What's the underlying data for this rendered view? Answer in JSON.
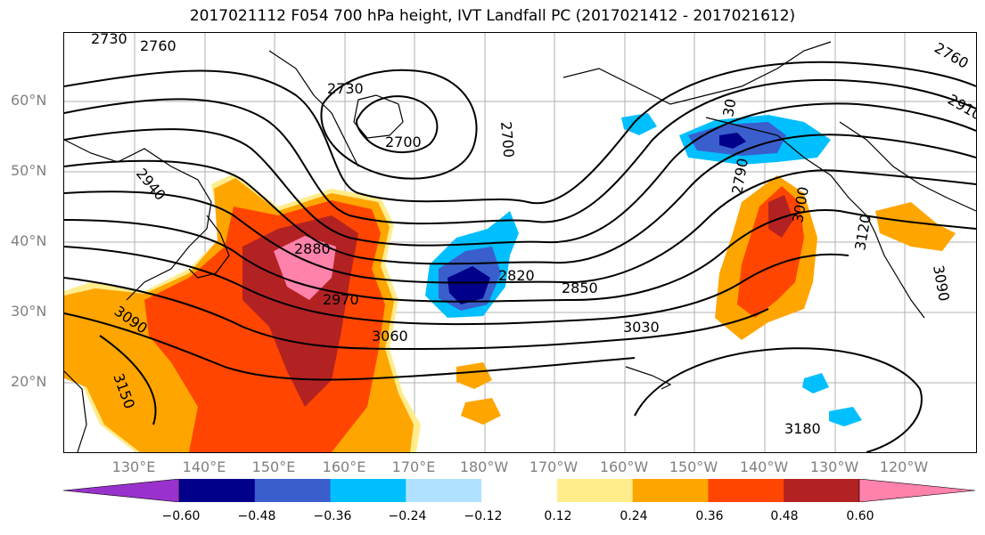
{
  "title": "2017021112 F054 700 hPa height, IVT Landfall PC (2017021412 - 2017021612)",
  "lat_labels": [
    "60°N",
    "50°N",
    "40°N",
    "30°N",
    "20°N"
  ],
  "lon_labels": [
    "130°E",
    "140°E",
    "150°E",
    "160°E",
    "170°E",
    "180°W",
    "170°W",
    "160°W",
    "150°W",
    "140°W",
    "130°W",
    "120°W"
  ],
  "contour_labels": [
    "2730",
    "2760",
    "2730",
    "2700",
    "2700",
    "2940",
    "2880",
    "2820",
    "2850",
    "2970",
    "3060",
    "3030",
    "3090",
    "3150",
    "3180",
    "2790",
    "3000",
    "2760",
    "2910",
    "3120",
    "3090",
    "30"
  ],
  "colorbar": {
    "colors": [
      "#9932cc",
      "#00008b",
      "#3a5fcd",
      "#00bfff",
      "#b0e2ff",
      "#ffffff",
      "#ffec8b",
      "#ffa500",
      "#ff4500",
      "#b22222",
      "#ff82ab"
    ],
    "ticks": [
      "−0.60",
      "−0.48",
      "−0.36",
      "−0.24",
      "−0.12",
      "0.12",
      "0.24",
      "0.36",
      "0.48",
      "0.60"
    ]
  }
}
